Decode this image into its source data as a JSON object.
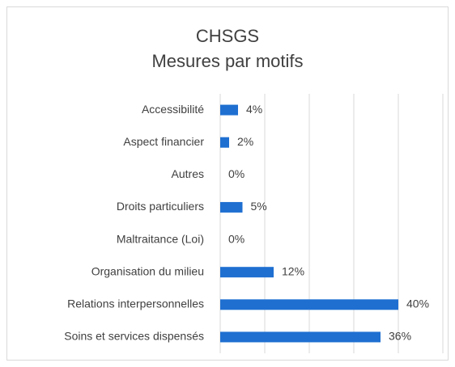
{
  "chart_data": {
    "type": "bar",
    "orientation": "horizontal",
    "title": "CHSGS",
    "subtitle": "Mesures par motifs",
    "categories": [
      "Accessibilité",
      "Aspect financier",
      "Autres",
      "Droits particuliers",
      "Maltraitance (Loi)",
      "Organisation du milieu",
      "Relations interpersonnelles",
      "Soins et services dispensés"
    ],
    "values": [
      4,
      2,
      0,
      5,
      0,
      12,
      40,
      36
    ],
    "value_labels": [
      "4%",
      "2%",
      "0%",
      "5%",
      "0%",
      "12%",
      "40%",
      "36%"
    ],
    "color": "#1f6fd1",
    "xlim": [
      0,
      50
    ],
    "xticks": [
      0,
      10,
      20,
      30,
      40,
      50
    ],
    "grid": true
  }
}
